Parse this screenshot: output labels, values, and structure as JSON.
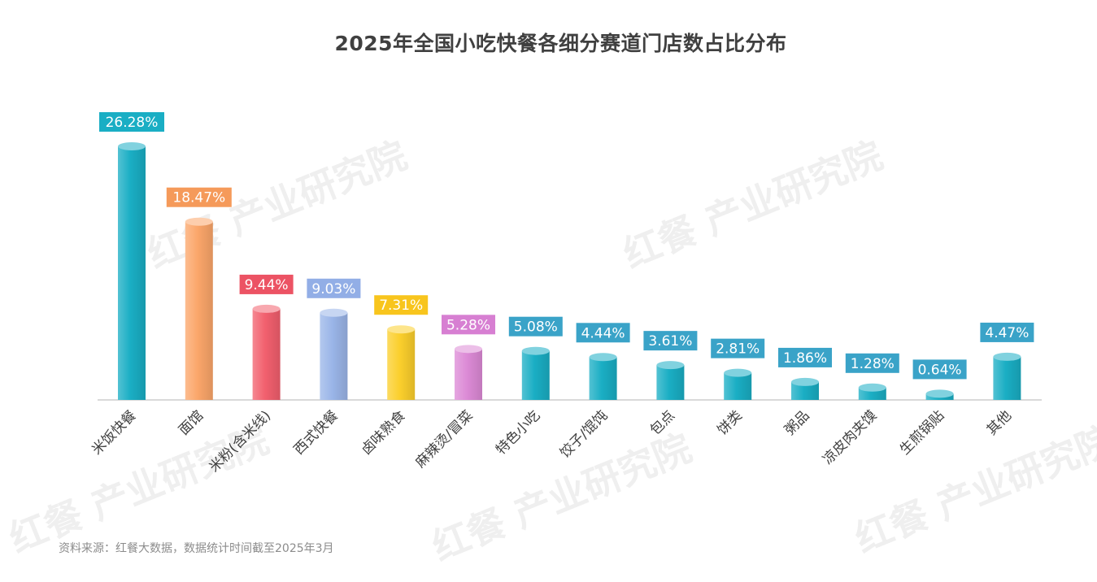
{
  "title": "2025年全国小吃快餐各细分赛道门店数占比分布",
  "source": "资料来源：红餐大数据，数据统计时间截至2025年3月",
  "watermark": {
    "brand": "红餐",
    "text": "产业研究院"
  },
  "chart_data": {
    "type": "bar",
    "title": "2025年全国小吃快餐各细分赛道门店数占比分布",
    "unit": "%",
    "ylim": [
      0,
      28
    ],
    "grid": false,
    "categories": [
      "米饭快餐",
      "面馆",
      "米粉(含米线)",
      "西式快餐",
      "卤味熟食",
      "麻辣烫/冒菜",
      "特色小吃",
      "饺子/馄饨",
      "包点",
      "饼类",
      "粥品",
      "凉皮肉夹馍",
      "生煎锅贴",
      "其他"
    ],
    "values": [
      26.28,
      18.47,
      9.44,
      9.03,
      7.31,
      5.28,
      5.08,
      4.44,
      3.61,
      2.81,
      1.86,
      1.28,
      0.64,
      4.47
    ],
    "labels": [
      "26.28%",
      "18.47%",
      "9.44%",
      "9.03%",
      "7.31%",
      "5.28%",
      "5.08%",
      "4.44%",
      "3.61%",
      "2.81%",
      "1.86%",
      "1.28%",
      "0.64%",
      "4.47%"
    ],
    "colors": [
      "#1aaec4",
      "#fba66a",
      "#f2606e",
      "#9ab5e8",
      "#fbcf2c",
      "#dc8ad6",
      "#1aaec4",
      "#1aaec4",
      "#1aaec4",
      "#1aaec4",
      "#1aaec4",
      "#1aaec4",
      "#1aaec4",
      "#1aaec4"
    ],
    "label_colors": [
      "#1aaec4",
      "#f59a5a",
      "#ec5364",
      "#92aee6",
      "#f8c51d",
      "#d77fd2",
      "#3aa3c8",
      "#3aa3c8",
      "#3aa3c8",
      "#3aa3c8",
      "#3aa3c8",
      "#3aa3c8",
      "#3aa3c8",
      "#3aa3c8"
    ]
  }
}
